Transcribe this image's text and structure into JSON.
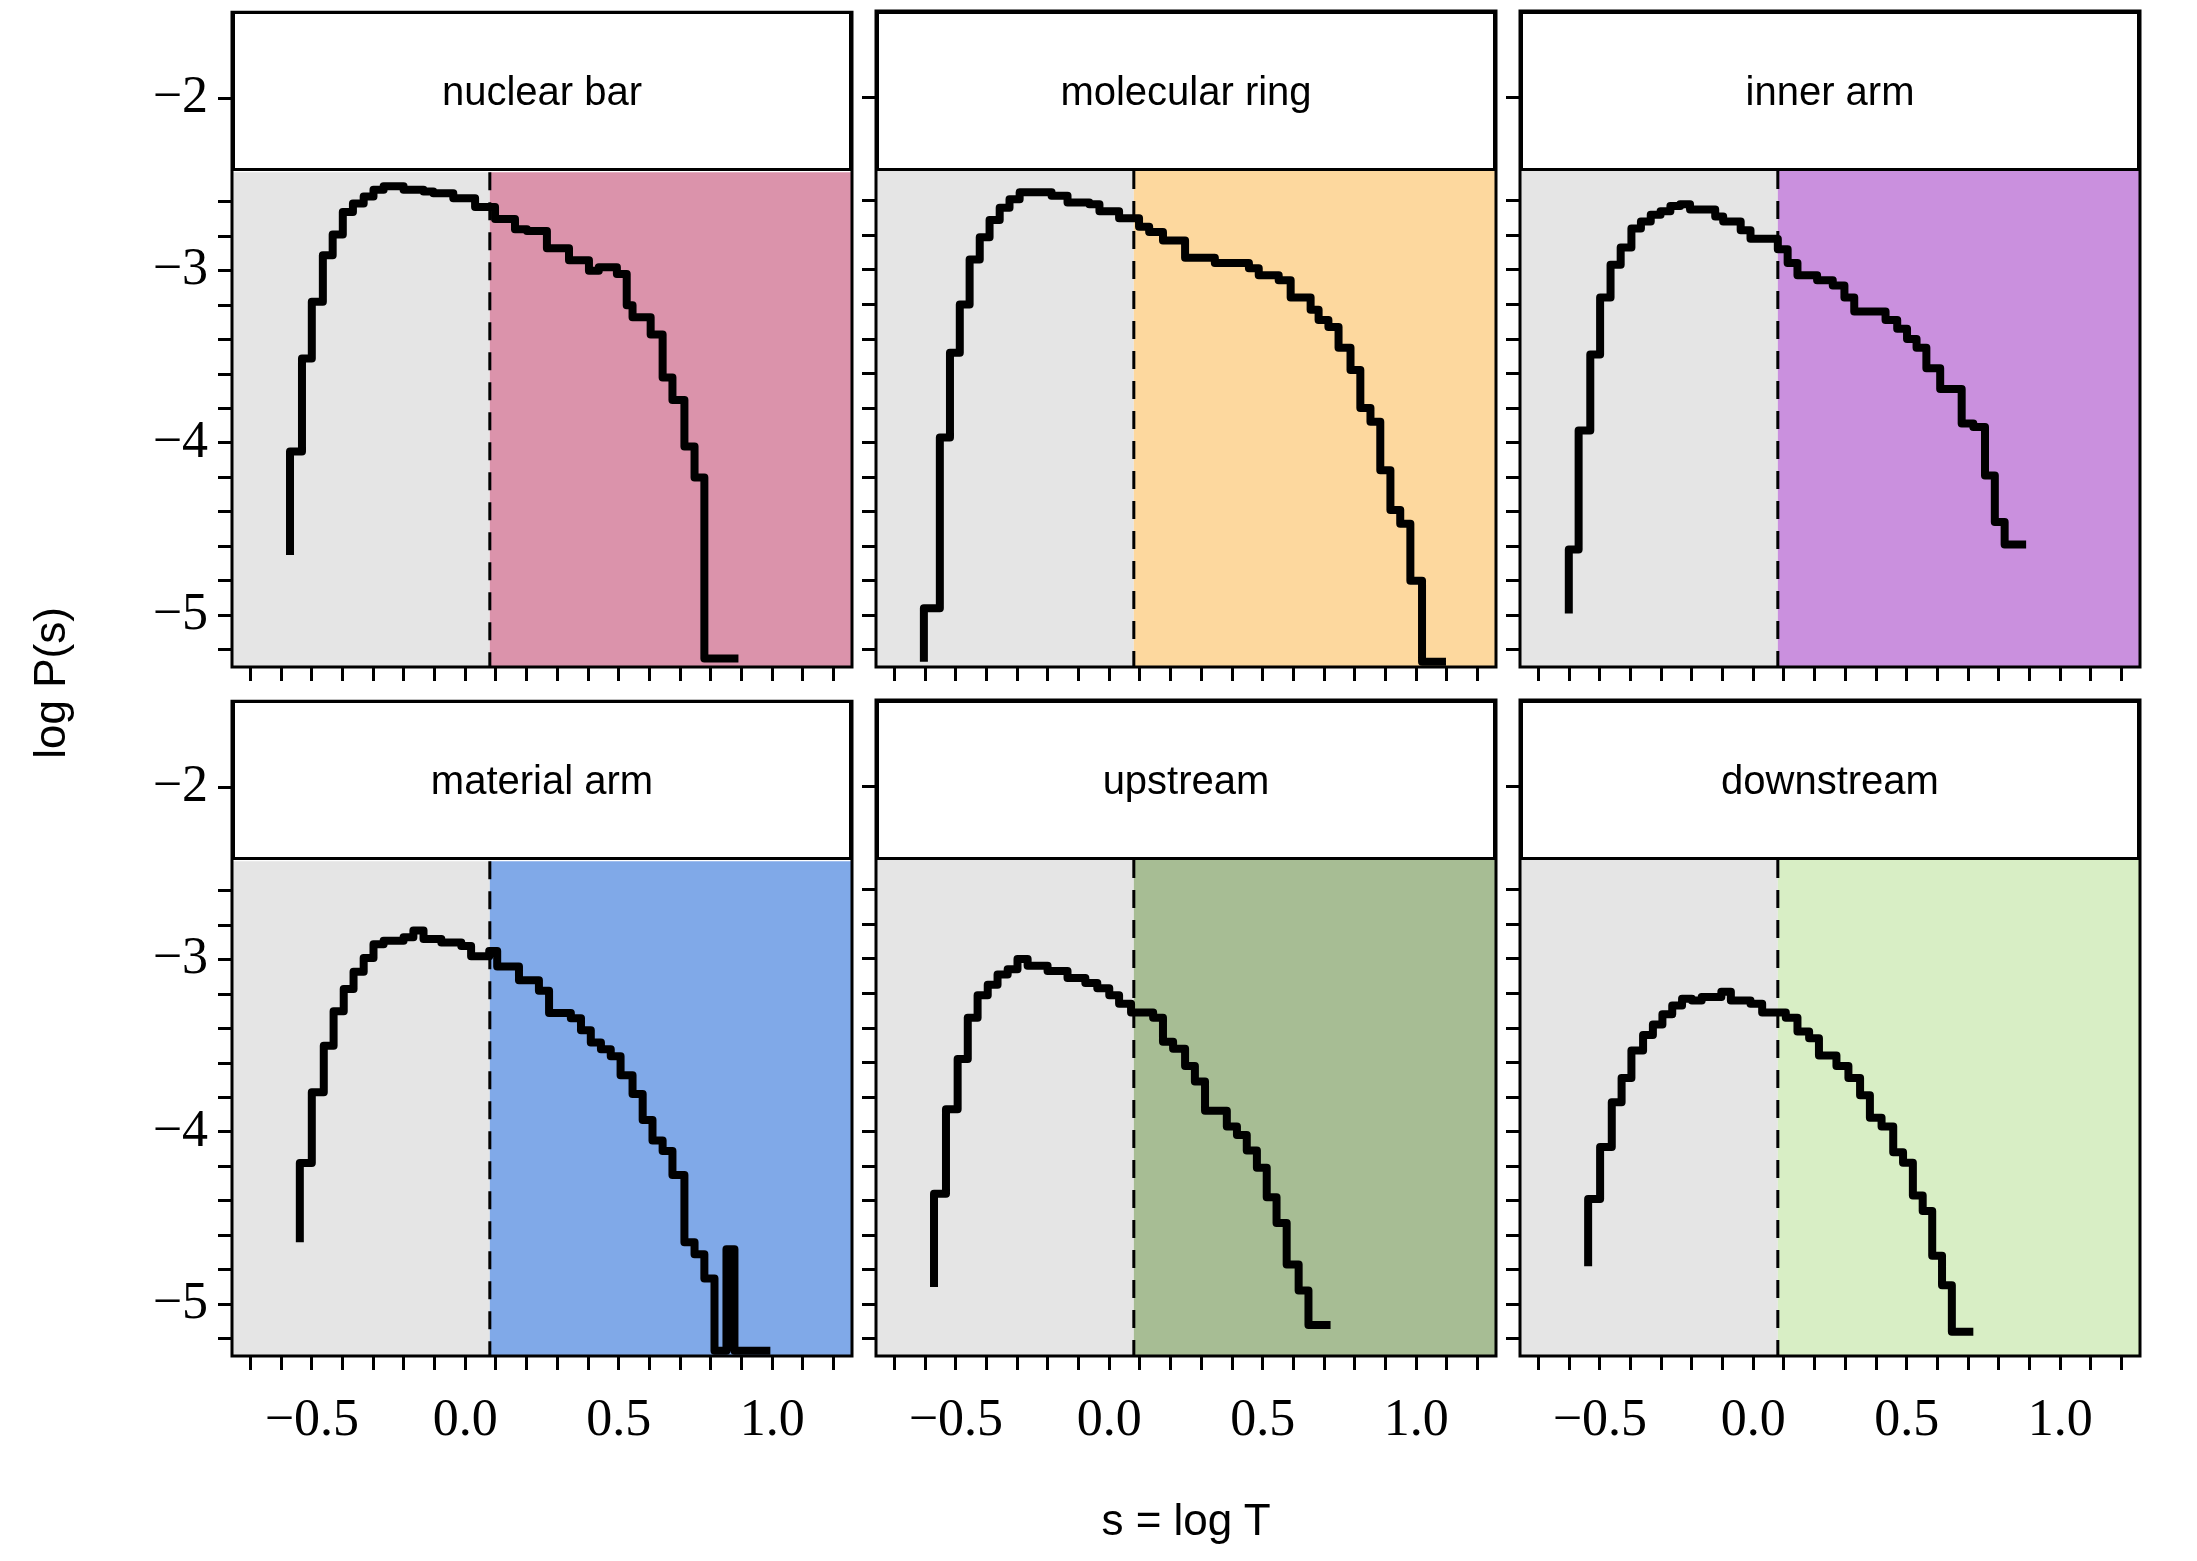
{
  "chart_data": [
    {
      "type": "step",
      "title": "nuclear bar",
      "color": "#000000",
      "xlim": [
        -0.76,
        1.26
      ],
      "ylim": [
        -5.3,
        -1.5
      ],
      "tick_labels": "y",
      "legend": false,
      "grid": false,
      "xticks": [
        -0.7,
        -0.6,
        -0.5,
        -0.4,
        -0.3,
        -0.2,
        -0.1,
        0,
        0.1,
        0.2,
        0.3,
        0.4,
        0.5,
        0.6,
        0.7,
        0.8,
        0.9,
        1,
        1.1,
        1.2
      ],
      "yticks": [
        {
          "value": -2,
          "label": "−2"
        },
        {
          "value": -2.6,
          "label": null
        },
        {
          "value": -2.8,
          "label": null
        },
        {
          "value": -3,
          "label": "−3"
        },
        {
          "value": -3.2,
          "label": null
        },
        {
          "value": -3.4,
          "label": null
        },
        {
          "value": -3.6,
          "label": null
        },
        {
          "value": -3.8,
          "label": null
        },
        {
          "value": -4,
          "label": "−4"
        },
        {
          "value": -4.2,
          "label": null
        },
        {
          "value": -4.4,
          "label": null
        },
        {
          "value": -4.6,
          "label": null
        },
        {
          "value": -4.8,
          "label": null
        },
        {
          "value": -5,
          "label": "−5"
        },
        {
          "value": -5.2,
          "label": null
        }
      ],
      "bands": [
        {
          "axis": "x",
          "from": -0.76,
          "to": 0.08,
          "color": "#e5e5e5"
        },
        {
          "axis": "x",
          "from": 0.08,
          "to": 1.26,
          "color": "#db93ab"
        }
      ],
      "ref_lines": [
        {
          "axis": "x",
          "value": 0.08,
          "color": "#000000",
          "line_style": "dashed"
        }
      ],
      "x": [
        -0.571,
        -0.532,
        -0.5,
        -0.464,
        -0.432,
        -0.399,
        -0.366,
        -0.331,
        -0.299,
        -0.266,
        -0.234,
        -0.201,
        -0.136,
        -0.104,
        -0.039,
        0.032,
        0.065,
        0.097,
        0.162,
        0.201,
        0.266,
        0.338,
        0.403,
        0.435,
        0.494,
        0.526,
        0.545,
        0.604,
        0.643,
        0.675,
        0.714,
        0.747,
        0.779,
        0.812,
        0.89
      ],
      "values": [
        -4.65,
        -4.05,
        -3.51,
        -3.18,
        -2.91,
        -2.79,
        -2.66,
        -2.61,
        -2.57,
        -2.53,
        -2.51,
        -2.51,
        -2.53,
        -2.54,
        -2.55,
        -2.58,
        -2.63,
        -2.63,
        -2.7,
        -2.76,
        -2.77,
        -2.87,
        -2.94,
        -3.0,
        -2.98,
        -3.02,
        -3.2,
        -3.27,
        -3.37,
        -3.62,
        -3.75,
        -4.02,
        -4.2,
        -5.25,
        -5.25
      ]
    },
    {
      "type": "step",
      "title": "molecular ring",
      "color": "#000000",
      "xlim": [
        -0.76,
        1.26
      ],
      "ylim": [
        -5.3,
        -1.5
      ],
      "tick_labels": false,
      "legend": false,
      "grid": false,
      "xticks": [
        -0.7,
        -0.6,
        -0.5,
        -0.4,
        -0.3,
        -0.2,
        -0.1,
        0,
        0.1,
        0.2,
        0.3,
        0.4,
        0.5,
        0.6,
        0.7,
        0.8,
        0.9,
        1,
        1.1,
        1.2
      ],
      "yticks": [
        -2,
        -2.6,
        -2.8,
        -3,
        -3.2,
        -3.4,
        -3.6,
        -3.8,
        -4,
        -4.2,
        -4.4,
        -4.6,
        -4.8,
        -5,
        -5.2
      ],
      "bands": [
        {
          "axis": "x",
          "from": -0.76,
          "to": 0.08,
          "color": "#e5e5e5"
        },
        {
          "axis": "x",
          "from": 0.08,
          "to": 1.26,
          "color": "#fdd89e"
        }
      ],
      "ref_lines": [
        {
          "axis": "x",
          "value": 0.08,
          "color": "#000000",
          "line_style": "dashed"
        }
      ],
      "x": [
        -0.604,
        -0.552,
        -0.519,
        -0.487,
        -0.455,
        -0.422,
        -0.39,
        -0.357,
        -0.325,
        -0.292,
        -0.26,
        -0.188,
        -0.136,
        -0.065,
        -0.032,
        0.032,
        0.097,
        0.13,
        0.175,
        0.247,
        0.344,
        0.455,
        0.487,
        0.552,
        0.591,
        0.656,
        0.682,
        0.714,
        0.747,
        0.786,
        0.818,
        0.851,
        0.883,
        0.916,
        0.948,
        0.981,
        1.019,
        1.052,
        1.097
      ],
      "values": [
        -5.27,
        -4.96,
        -3.97,
        -3.48,
        -3.2,
        -2.94,
        -2.81,
        -2.71,
        -2.64,
        -2.59,
        -2.55,
        -2.55,
        -2.57,
        -2.61,
        -2.62,
        -2.66,
        -2.7,
        -2.75,
        -2.78,
        -2.83,
        -2.93,
        -2.96,
        -2.99,
        -3.03,
        -3.06,
        -3.16,
        -3.23,
        -3.29,
        -3.33,
        -3.45,
        -3.58,
        -3.8,
        -3.88,
        -4.16,
        -4.39,
        -4.47,
        -4.8,
        -5.27,
        -5.27
      ]
    },
    {
      "type": "step",
      "title": "inner arm",
      "color": "#000000",
      "xlim": [
        -0.76,
        1.26
      ],
      "ylim": [
        -5.3,
        -1.5
      ],
      "tick_labels": false,
      "legend": false,
      "grid": false,
      "xticks": [
        -0.7,
        -0.6,
        -0.5,
        -0.4,
        -0.3,
        -0.2,
        -0.1,
        0,
        0.1,
        0.2,
        0.3,
        0.4,
        0.5,
        0.6,
        0.7,
        0.8,
        0.9,
        1,
        1.1,
        1.2
      ],
      "yticks": [
        -2,
        -2.6,
        -2.8,
        -3,
        -3.2,
        -3.4,
        -3.6,
        -3.8,
        -4,
        -4.2,
        -4.4,
        -4.6,
        -4.8,
        -5,
        -5.2
      ],
      "bands": [
        {
          "axis": "x",
          "from": -0.76,
          "to": 0.08,
          "color": "#e5e5e5"
        },
        {
          "axis": "x",
          "from": 0.08,
          "to": 1.26,
          "color": "#ca90de"
        }
      ],
      "ref_lines": [
        {
          "axis": "x",
          "value": 0.08,
          "color": "#000000",
          "line_style": "dashed"
        }
      ],
      "x": [
        -0.601,
        -0.569,
        -0.531,
        -0.499,
        -0.465,
        -0.432,
        -0.397,
        -0.366,
        -0.334,
        -0.302,
        -0.27,
        -0.238,
        -0.206,
        -0.124,
        -0.098,
        -0.041,
        -0.009,
        0.036,
        0.08,
        0.112,
        0.144,
        0.208,
        0.259,
        0.297,
        0.329,
        0.361,
        0.431,
        0.469,
        0.501,
        0.532,
        0.564,
        0.609,
        0.679,
        0.717,
        0.755,
        0.787,
        0.819,
        0.851,
        0.889
      ],
      "values": [
        -4.99,
        -4.62,
        -3.93,
        -3.49,
        -3.16,
        -2.97,
        -2.87,
        -2.76,
        -2.72,
        -2.68,
        -2.66,
        -2.63,
        -2.62,
        -2.65,
        -2.69,
        -2.72,
        -2.77,
        -2.82,
        -2.82,
        -2.88,
        -2.96,
        -3.03,
        -3.06,
        -3.09,
        -3.16,
        -3.24,
        -3.24,
        -3.29,
        -3.34,
        -3.4,
        -3.45,
        -3.57,
        -3.69,
        -3.89,
        -3.91,
        -4.19,
        -4.46,
        -4.59,
        -4.59
      ]
    },
    {
      "type": "step",
      "title": "material arm",
      "ylabel": "log P(s)",
      "color": "#000000",
      "xlim": [
        -0.76,
        1.26
      ],
      "ylim": [
        -5.3,
        -1.5
      ],
      "legend": false,
      "grid": false,
      "xticks": [
        {
          "value": -0.7,
          "label": null
        },
        {
          "value": -0.6,
          "label": null
        },
        {
          "value": -0.5,
          "label": "−0.5"
        },
        {
          "value": -0.4,
          "label": null
        },
        {
          "value": -0.3,
          "label": null
        },
        {
          "value": -0.2,
          "label": null
        },
        {
          "value": -0.1,
          "label": null
        },
        {
          "value": 0,
          "label": "0.0"
        },
        {
          "value": 0.1,
          "label": null
        },
        {
          "value": 0.2,
          "label": null
        },
        {
          "value": 0.3,
          "label": null
        },
        {
          "value": 0.4,
          "label": null
        },
        {
          "value": 0.5,
          "label": "0.5"
        },
        {
          "value": 0.6,
          "label": null
        },
        {
          "value": 0.7,
          "label": null
        },
        {
          "value": 0.8,
          "label": null
        },
        {
          "value": 0.9,
          "label": null
        },
        {
          "value": 1,
          "label": "1.0"
        },
        {
          "value": 1.1,
          "label": null
        },
        {
          "value": 1.2,
          "label": null
        }
      ],
      "yticks": [
        {
          "value": -2,
          "label": "−2"
        },
        {
          "value": -2.6,
          "label": null
        },
        {
          "value": -2.8,
          "label": null
        },
        {
          "value": -3,
          "label": "−3"
        },
        {
          "value": -3.2,
          "label": null
        },
        {
          "value": -3.4,
          "label": null
        },
        {
          "value": -3.6,
          "label": null
        },
        {
          "value": -3.8,
          "label": null
        },
        {
          "value": -4,
          "label": "−4"
        },
        {
          "value": -4.2,
          "label": null
        },
        {
          "value": -4.4,
          "label": null
        },
        {
          "value": -4.6,
          "label": null
        },
        {
          "value": -4.8,
          "label": null
        },
        {
          "value": -5,
          "label": "−5"
        },
        {
          "value": -5.2,
          "label": null
        }
      ],
      "bands": [
        {
          "axis": "x",
          "from": -0.76,
          "to": 0.08,
          "color": "#e5e5e5"
        },
        {
          "axis": "x",
          "from": 0.08,
          "to": 1.26,
          "color": "#80a9e8"
        }
      ],
      "ref_lines": [
        {
          "axis": "x",
          "value": 0.08,
          "color": "#000000",
          "line_style": "dashed"
        }
      ],
      "x": [
        -0.539,
        -0.5,
        -0.461,
        -0.429,
        -0.396,
        -0.364,
        -0.331,
        -0.299,
        -0.266,
        -0.201,
        -0.169,
        -0.136,
        -0.078,
        -0.013,
        0.019,
        0.078,
        0.104,
        0.175,
        0.24,
        0.273,
        0.344,
        0.377,
        0.409,
        0.442,
        0.474,
        0.506,
        0.545,
        0.578,
        0.61,
        0.643,
        0.675,
        0.714,
        0.747,
        0.779,
        0.812,
        0.851,
        0.877,
        0.922,
        0.994
      ],
      "values": [
        -4.64,
        -4.18,
        -3.77,
        -3.5,
        -3.3,
        -3.17,
        -3.07,
        -2.99,
        -2.91,
        -2.89,
        -2.87,
        -2.83,
        -2.88,
        -2.9,
        -2.92,
        -2.98,
        -2.95,
        -3.04,
        -3.12,
        -3.18,
        -3.31,
        -3.34,
        -3.41,
        -3.48,
        -3.52,
        -3.56,
        -3.67,
        -3.78,
        -3.93,
        -4.05,
        -4.11,
        -4.25,
        -4.64,
        -4.71,
        -4.85,
        -5.27,
        -4.68,
        -5.27,
        -5.27
      ]
    },
    {
      "type": "step",
      "title": "upstream",
      "xlabel": "s = log T",
      "color": "#000000",
      "xlim": [
        -0.76,
        1.26
      ],
      "ylim": [
        -5.3,
        -1.5
      ],
      "tick_labels": "x",
      "legend": false,
      "grid": false,
      "xticks": [
        {
          "value": -0.7,
          "label": null
        },
        {
          "value": -0.6,
          "label": null
        },
        {
          "value": -0.5,
          "label": "−0.5"
        },
        {
          "value": -0.4,
          "label": null
        },
        {
          "value": -0.3,
          "label": null
        },
        {
          "value": -0.2,
          "label": null
        },
        {
          "value": -0.1,
          "label": null
        },
        {
          "value": 0,
          "label": "0.0"
        },
        {
          "value": 0.1,
          "label": null
        },
        {
          "value": 0.2,
          "label": null
        },
        {
          "value": 0.3,
          "label": null
        },
        {
          "value": 0.4,
          "label": null
        },
        {
          "value": 0.5,
          "label": "0.5"
        },
        {
          "value": 0.6,
          "label": null
        },
        {
          "value": 0.7,
          "label": null
        },
        {
          "value": 0.8,
          "label": null
        },
        {
          "value": 0.9,
          "label": null
        },
        {
          "value": 1,
          "label": "1.0"
        },
        {
          "value": 1.1,
          "label": null
        },
        {
          "value": 1.2,
          "label": null
        }
      ],
      "yticks": [
        -2,
        -2.6,
        -2.8,
        -3,
        -3.2,
        -3.4,
        -3.6,
        -3.8,
        -4,
        -4.2,
        -4.4,
        -4.6,
        -4.8,
        -5,
        -5.2
      ],
      "bands": [
        {
          "axis": "x",
          "from": -0.76,
          "to": 0.08,
          "color": "#e5e5e5"
        },
        {
          "axis": "x",
          "from": 0.08,
          "to": 1.26,
          "color": "#a7bd94"
        }
      ],
      "ref_lines": [
        {
          "axis": "x",
          "value": 0.08,
          "color": "#000000",
          "line_style": "dashed"
        }
      ],
      "x": [
        -0.571,
        -0.532,
        -0.494,
        -0.461,
        -0.429,
        -0.396,
        -0.364,
        -0.331,
        -0.299,
        -0.266,
        -0.201,
        -0.136,
        -0.078,
        -0.039,
        0,
        0.032,
        0.071,
        0.143,
        0.175,
        0.208,
        0.247,
        0.279,
        0.312,
        0.383,
        0.416,
        0.448,
        0.481,
        0.513,
        0.545,
        0.578,
        0.617,
        0.649,
        0.682,
        0.721
      ],
      "values": [
        -4.9,
        -4.36,
        -3.87,
        -3.58,
        -3.34,
        -3.21,
        -3.15,
        -3.09,
        -3.06,
        -3.0,
        -3.04,
        -3.07,
        -3.11,
        -3.14,
        -3.17,
        -3.21,
        -3.26,
        -3.31,
        -3.34,
        -3.48,
        -3.52,
        -3.62,
        -3.71,
        -3.88,
        -3.97,
        -4.02,
        -4.11,
        -4.21,
        -4.38,
        -4.53,
        -4.77,
        -4.92,
        -5.12,
        -5.12
      ]
    },
    {
      "type": "step",
      "title": "downstream",
      "color": "#000000",
      "xlim": [
        -0.76,
        1.26
      ],
      "ylim": [
        -5.3,
        -1.5
      ],
      "tick_labels": "x",
      "legend": false,
      "grid": false,
      "xticks": [
        {
          "value": -0.7,
          "label": null
        },
        {
          "value": -0.6,
          "label": null
        },
        {
          "value": -0.5,
          "label": "−0.5"
        },
        {
          "value": -0.4,
          "label": null
        },
        {
          "value": -0.3,
          "label": null
        },
        {
          "value": -0.2,
          "label": null
        },
        {
          "value": -0.1,
          "label": null
        },
        {
          "value": 0,
          "label": "0.0"
        },
        {
          "value": 0.1,
          "label": null
        },
        {
          "value": 0.2,
          "label": null
        },
        {
          "value": 0.3,
          "label": null
        },
        {
          "value": 0.4,
          "label": null
        },
        {
          "value": 0.5,
          "label": "0.5"
        },
        {
          "value": 0.6,
          "label": null
        },
        {
          "value": 0.7,
          "label": null
        },
        {
          "value": 0.8,
          "label": null
        },
        {
          "value": 0.9,
          "label": null
        },
        {
          "value": 1,
          "label": "1.0"
        },
        {
          "value": 1.1,
          "label": null
        },
        {
          "value": 1.2,
          "label": null
        }
      ],
      "yticks": [
        -2,
        -2.6,
        -2.8,
        -3,
        -3.2,
        -3.4,
        -3.6,
        -3.8,
        -4,
        -4.2,
        -4.4,
        -4.6,
        -4.8,
        -5,
        -5.2
      ],
      "bands": [
        {
          "axis": "x",
          "from": -0.76,
          "to": 0.08,
          "color": "#e5e5e5"
        },
        {
          "axis": "x",
          "from": 0.08,
          "to": 1.26,
          "color": "#d8eec5"
        }
      ],
      "ref_lines": [
        {
          "axis": "x",
          "value": 0.08,
          "color": "#000000",
          "line_style": "dashed"
        }
      ],
      "x": [
        -0.538,
        -0.499,
        -0.461,
        -0.429,
        -0.397,
        -0.359,
        -0.327,
        -0.296,
        -0.264,
        -0.232,
        -0.2,
        -0.168,
        -0.104,
        -0.073,
        -0.009,
        0.029,
        0.106,
        0.144,
        0.182,
        0.214,
        0.271,
        0.31,
        0.348,
        0.38,
        0.418,
        0.456,
        0.488,
        0.52,
        0.552,
        0.583,
        0.615,
        0.647,
        0.679,
        0.717
      ],
      "values": [
        -4.78,
        -4.39,
        -4.09,
        -3.83,
        -3.69,
        -3.53,
        -3.44,
        -3.38,
        -3.32,
        -3.27,
        -3.23,
        -3.24,
        -3.22,
        -3.19,
        -3.24,
        -3.26,
        -3.31,
        -3.34,
        -3.42,
        -3.46,
        -3.56,
        -3.62,
        -3.69,
        -3.79,
        -3.92,
        -3.97,
        -4.12,
        -4.18,
        -4.37,
        -4.46,
        -4.72,
        -4.89,
        -5.16,
        -5.16
      ]
    }
  ]
}
